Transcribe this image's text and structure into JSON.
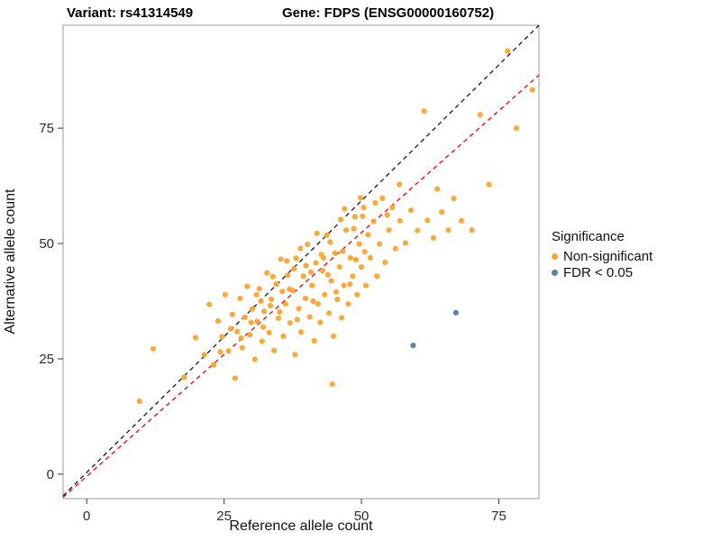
{
  "chart_data": {
    "type": "scatter",
    "titles": {
      "left": "Variant: rs41314549",
      "right": "Gene: FDPS (ENSG00000160752)"
    },
    "xlabel": "Reference allele count",
    "ylabel": "Alternative allele count",
    "xlim": [
      -4.3,
      82.3
    ],
    "ylim": [
      -5.3,
      97.3
    ],
    "x_ticks": [
      0,
      25,
      50,
      75
    ],
    "y_ticks": [
      0,
      25,
      50,
      75
    ],
    "grid": false,
    "legend": {
      "title": "Significance",
      "position": "right"
    },
    "series": [
      {
        "name": "Non-significant",
        "color": "#F8A531",
        "points": [
          [
            9.6,
            15.8
          ],
          [
            12.1,
            27.2
          ],
          [
            17.7,
            21.0
          ],
          [
            19.8,
            29.6
          ],
          [
            21.4,
            25.9
          ],
          [
            22.3,
            36.8
          ],
          [
            23.1,
            23.7
          ],
          [
            23.9,
            33.2
          ],
          [
            24.6,
            29.8
          ],
          [
            25.2,
            38.9
          ],
          [
            25.8,
            26.7
          ],
          [
            26.5,
            34.6
          ],
          [
            27.0,
            20.8
          ],
          [
            27.4,
            30.9
          ],
          [
            27.9,
            38.1
          ],
          [
            28.3,
            27.4
          ],
          [
            28.8,
            34.0
          ],
          [
            29.2,
            40.7
          ],
          [
            29.7,
            30.2
          ],
          [
            30.1,
            35.8
          ],
          [
            30.6,
            24.9
          ],
          [
            31.0,
            33.1
          ],
          [
            31.4,
            40.2
          ],
          [
            31.9,
            28.8
          ],
          [
            32.3,
            35.3
          ],
          [
            32.8,
            43.6
          ],
          [
            33.2,
            30.7
          ],
          [
            33.6,
            37.9
          ],
          [
            34.1,
            26.8
          ],
          [
            34.5,
            41.2
          ],
          [
            34.9,
            33.8
          ],
          [
            35.3,
            46.6
          ],
          [
            35.8,
            29.9
          ],
          [
            36.2,
            36.9
          ],
          [
            36.6,
            43.1
          ],
          [
            37.0,
            32.8
          ],
          [
            37.5,
            39.8
          ],
          [
            37.9,
            25.9
          ],
          [
            38.1,
            46.8
          ],
          [
            38.6,
            35.9
          ],
          [
            39.0,
            30.8
          ],
          [
            39.4,
            42.9
          ],
          [
            39.8,
            38.1
          ],
          [
            40.2,
            49.8
          ],
          [
            40.6,
            34.1
          ],
          [
            41.0,
            40.9
          ],
          [
            41.4,
            28.9
          ],
          [
            41.7,
            45.8
          ],
          [
            42.1,
            36.9
          ],
          [
            42.5,
            32.9
          ],
          [
            42.9,
            44.1
          ],
          [
            43.3,
            38.9
          ],
          [
            43.7,
            51.8
          ],
          [
            44.1,
            34.9
          ],
          [
            44.5,
            41.9
          ],
          [
            44.9,
            29.9
          ],
          [
            45.2,
            47.9
          ],
          [
            45.6,
            37.9
          ],
          [
            46.0,
            44.9
          ],
          [
            46.4,
            33.9
          ],
          [
            46.8,
            40.9
          ],
          [
            47.2,
            52.9
          ],
          [
            47.6,
            36.9
          ],
          [
            48.0,
            46.9
          ],
          [
            48.4,
            42.9
          ],
          [
            48.8,
            55.8
          ],
          [
            49.2,
            38.9
          ],
          [
            49.6,
            49.9
          ],
          [
            50.0,
            44.9
          ],
          [
            50.4,
            57.8
          ],
          [
            50.8,
            40.9
          ],
          [
            51.2,
            51.9
          ],
          [
            51.6,
            46.9
          ],
          [
            52.2,
            54.8
          ],
          [
            52.8,
            42.9
          ],
          [
            53.3,
            49.9
          ],
          [
            53.8,
            59.8
          ],
          [
            54.3,
            45.9
          ],
          [
            55.0,
            52.9
          ],
          [
            55.6,
            57.8
          ],
          [
            56.2,
            48.9
          ],
          [
            57.0,
            54.9
          ],
          [
            58.0,
            50.1
          ],
          [
            59.0,
            57.2
          ],
          [
            60.2,
            52.8
          ],
          [
            61.4,
            78.7
          ],
          [
            62.0,
            55.0
          ],
          [
            63.1,
            51.2
          ],
          [
            63.8,
            61.8
          ],
          [
            64.6,
            56.8
          ],
          [
            65.8,
            52.9
          ],
          [
            66.8,
            59.8
          ],
          [
            68.2,
            54.9
          ],
          [
            70.1,
            52.9
          ],
          [
            71.6,
            77.9
          ],
          [
            73.2,
            62.8
          ],
          [
            76.6,
            91.7
          ],
          [
            78.2,
            75.0
          ],
          [
            81.1,
            83.3
          ],
          [
            30.9,
            38.9
          ],
          [
            32.1,
            31.9
          ],
          [
            33.9,
            42.8
          ],
          [
            35.1,
            35.2
          ],
          [
            36.9,
            40.1
          ],
          [
            38.3,
            33.5
          ],
          [
            39.9,
            45.2
          ],
          [
            41.2,
            37.5
          ],
          [
            42.7,
            47.6
          ],
          [
            43.9,
            43.2
          ],
          [
            45.4,
            39.5
          ],
          [
            46.6,
            48.3
          ],
          [
            47.9,
            41.2
          ],
          [
            49.0,
            46.5
          ],
          [
            50.6,
            48.2
          ],
          [
            36.4,
            46.2
          ],
          [
            38.9,
            48.9
          ],
          [
            41.9,
            52.2
          ],
          [
            44.3,
            50.3
          ],
          [
            46.2,
            55.2
          ],
          [
            48.6,
            53.2
          ],
          [
            50.2,
            55.9
          ],
          [
            52.5,
            58.8
          ],
          [
            54.7,
            56.2
          ],
          [
            43.1,
            46.9
          ],
          [
            40.8,
            43.8
          ],
          [
            37.7,
            44.5
          ],
          [
            35.6,
            39.6
          ],
          [
            33.4,
            36.5
          ],
          [
            31.7,
            37.5
          ],
          [
            29.9,
            32.9
          ],
          [
            28.1,
            29.5
          ],
          [
            26.2,
            31.5
          ],
          [
            24.3,
            26.5
          ],
          [
            44.7,
            19.5
          ],
          [
            56.9,
            62.8
          ],
          [
            49.8,
            59.9
          ],
          [
            46.9,
            57.5
          ]
        ]
      },
      {
        "name": "FDR < 0.05",
        "color": "#5580A5",
        "points": [
          [
            59.4,
            27.9
          ],
          [
            67.2,
            35.0
          ]
        ]
      }
    ],
    "lines": [
      {
        "name": "identity-line",
        "color": "#1A1A1A",
        "dash": true,
        "from": [
          -4.3,
          -4.7
        ],
        "to": [
          82.3,
          97.3
        ]
      },
      {
        "name": "fit-line",
        "color": "#FF0000",
        "dash": true,
        "from": [
          -4.3,
          -5.0
        ],
        "to": [
          82.3,
          86.5
        ]
      }
    ],
    "style": {
      "panel_border_color": "#9B9B9B",
      "tick_color": "#333333",
      "tick_label_color": "#2B2B2B",
      "point_radius": 3.1
    }
  }
}
